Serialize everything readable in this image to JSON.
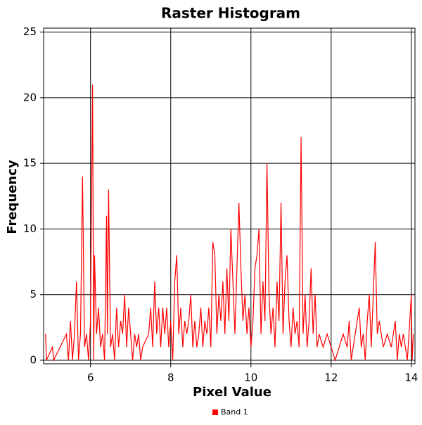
{
  "chart_data": {
    "type": "line",
    "title": "Raster Histogram",
    "xlabel": "Pixel Value",
    "ylabel": "Frequency",
    "x": [
      4.88,
      4.9,
      5.05,
      5.08,
      5.4,
      5.45,
      5.5,
      5.55,
      5.6,
      5.65,
      5.7,
      5.75,
      5.8,
      5.82,
      5.85,
      5.9,
      5.95,
      6.0,
      6.05,
      6.08,
      6.1,
      6.15,
      6.2,
      6.25,
      6.3,
      6.35,
      6.4,
      6.42,
      6.45,
      6.5,
      6.55,
      6.6,
      6.65,
      6.7,
      6.75,
      6.8,
      6.85,
      6.9,
      6.95,
      7.0,
      7.05,
      7.1,
      7.15,
      7.2,
      7.25,
      7.3,
      7.45,
      7.5,
      7.55,
      7.6,
      7.65,
      7.7,
      7.75,
      7.8,
      7.85,
      7.9,
      7.95,
      8.0,
      8.05,
      8.1,
      8.15,
      8.2,
      8.25,
      8.3,
      8.35,
      8.4,
      8.45,
      8.5,
      8.55,
      8.6,
      8.65,
      8.7,
      8.75,
      8.8,
      8.85,
      8.9,
      8.95,
      9.0,
      9.05,
      9.1,
      9.15,
      9.2,
      9.25,
      9.3,
      9.35,
      9.4,
      9.45,
      9.5,
      9.55,
      9.6,
      9.65,
      9.7,
      9.75,
      9.8,
      9.85,
      9.9,
      9.95,
      10.0,
      10.05,
      10.1,
      10.15,
      10.2,
      10.25,
      10.3,
      10.35,
      10.4,
      10.45,
      10.5,
      10.55,
      10.6,
      10.65,
      10.7,
      10.75,
      10.8,
      10.85,
      10.9,
      10.95,
      11.0,
      11.05,
      11.1,
      11.15,
      11.2,
      11.25,
      11.3,
      11.35,
      11.4,
      11.45,
      11.5,
      11.55,
      11.6,
      11.65,
      11.7,
      11.8,
      11.9,
      12.0,
      12.1,
      12.2,
      12.3,
      12.4,
      12.45,
      12.5,
      12.6,
      12.7,
      12.75,
      12.8,
      12.85,
      12.9,
      12.95,
      13.0,
      13.05,
      13.1,
      13.15,
      13.2,
      13.3,
      13.4,
      13.5,
      13.6,
      13.65,
      13.7,
      13.75,
      13.8,
      13.9,
      14.0,
      14.02,
      14.05
    ],
    "series": [
      {
        "name": "Band 1",
        "color": "#ff0000",
        "values": [
          2,
          0,
          1,
          0,
          2,
          0,
          3,
          0,
          2,
          6,
          0,
          2,
          14,
          9,
          1,
          2,
          0,
          3,
          21,
          0,
          8,
          2,
          4,
          1,
          2,
          0,
          11,
          2,
          13,
          1,
          2,
          0,
          4,
          1,
          3,
          2,
          5,
          1,
          4,
          2,
          0,
          2,
          1,
          2,
          0,
          1,
          2,
          4,
          1,
          6,
          2,
          4,
          1,
          4,
          2,
          4,
          1,
          3,
          0,
          6,
          8,
          2,
          4,
          1,
          3,
          2,
          3,
          5,
          1,
          3,
          1,
          2,
          4,
          1,
          3,
          2,
          4,
          1,
          9,
          8,
          2,
          5,
          3,
          6,
          2,
          7,
          3,
          10,
          6,
          2,
          7,
          12,
          7,
          3,
          5,
          2,
          4,
          1,
          3,
          7,
          8,
          10,
          2,
          6,
          3,
          15,
          5,
          2,
          4,
          1,
          6,
          3,
          12,
          2,
          6,
          8,
          3,
          1,
          4,
          2,
          3,
          1,
          17,
          2,
          5,
          1,
          3,
          7,
          2,
          5,
          1,
          2,
          1,
          2,
          1,
          0,
          1,
          2,
          1,
          3,
          0,
          2,
          4,
          1,
          2,
          0,
          3,
          5,
          1,
          5,
          9,
          2,
          3,
          1,
          2,
          1,
          3,
          0,
          2,
          1,
          2,
          0,
          5,
          0,
          2
        ]
      }
    ],
    "xlim": [
      4.83,
      14.09
    ],
    "ylim": [
      -0.27,
      25.3
    ],
    "xticks": [
      6,
      8,
      10,
      12,
      14
    ],
    "yticks": [
      0,
      5,
      10,
      15,
      20,
      25
    ],
    "grid": true,
    "legend": "bottom"
  }
}
